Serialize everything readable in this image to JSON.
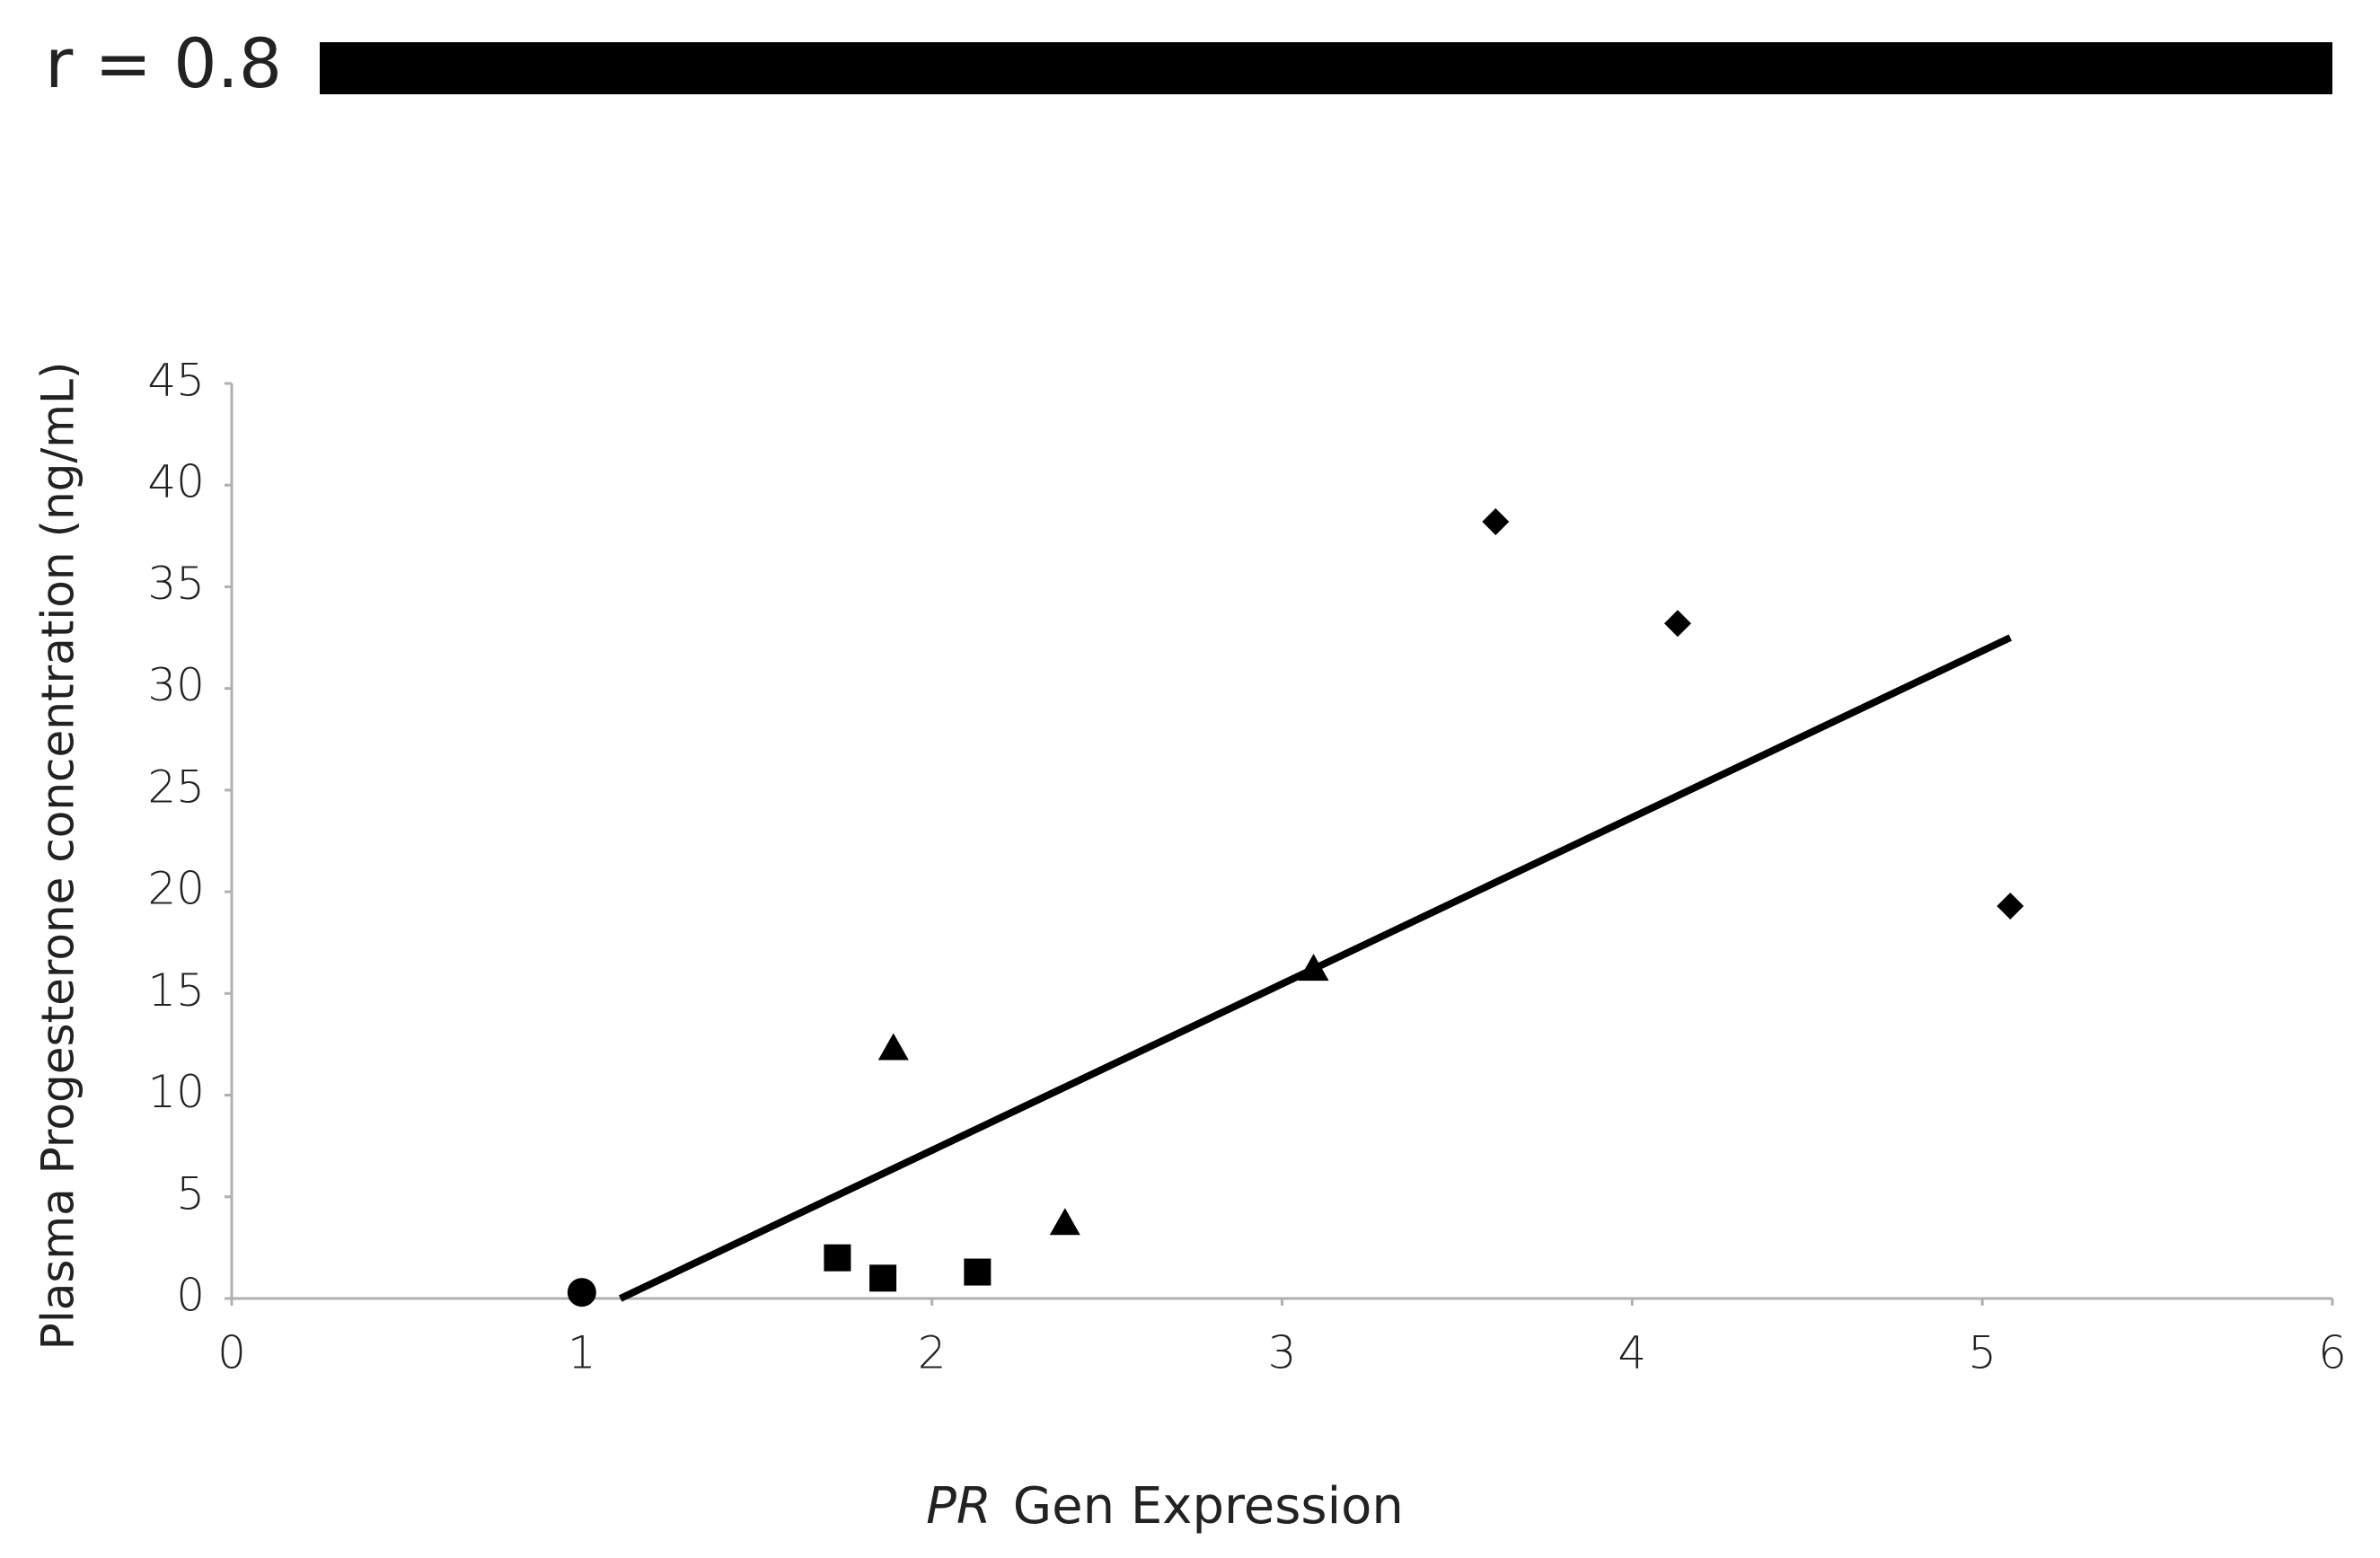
{
  "chart_data": {
    "type": "scatter",
    "title": "r = 0.8",
    "xlabel_italic": "PR",
    "xlabel": "Gen Expression",
    "ylabel": "Plasma Progesterone concentration (ng/mL)",
    "xlim": [
      0,
      6
    ],
    "xticks": [
      0,
      1,
      2,
      3,
      4,
      5,
      6
    ],
    "ylim": [
      0,
      45
    ],
    "yticks": [
      0,
      5,
      10,
      15,
      20,
      25,
      30,
      35,
      40,
      45
    ],
    "grid": false,
    "series": [
      {
        "marker": "circle",
        "color": "#000000",
        "x": [
          1.0
        ],
        "values": [
          0.3
        ]
      },
      {
        "marker": "square",
        "color": "#000000",
        "x": [
          1.73,
          1.86,
          2.13
        ],
        "values": [
          2.0,
          1.0,
          1.3
        ]
      },
      {
        "marker": "triangle",
        "color": "#000000",
        "x": [
          1.89,
          2.38,
          3.09
        ],
        "values": [
          12.3,
          3.7,
          16.2
        ]
      },
      {
        "marker": "diamond",
        "color": "#000000",
        "x": [
          3.61,
          4.13,
          5.08
        ],
        "values": [
          38.2,
          33.2,
          19.3
        ]
      }
    ],
    "trendline": {
      "color": "#000000",
      "x": [
        1.11,
        5.08
      ],
      "values": [
        0,
        32.5
      ]
    }
  }
}
